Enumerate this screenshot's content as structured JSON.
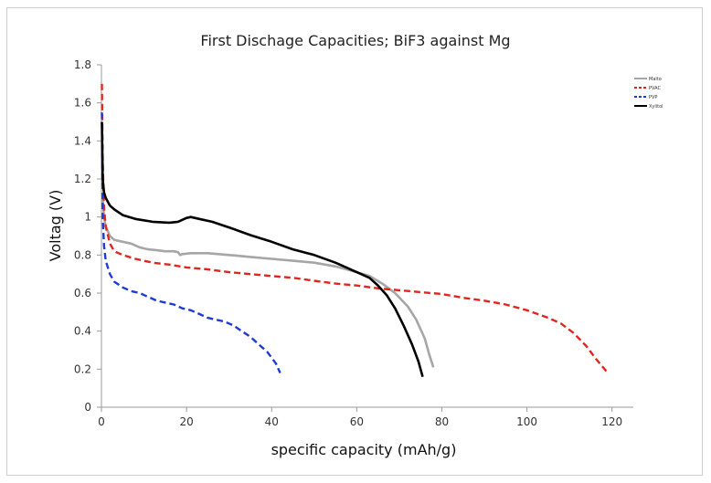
{
  "chart_data": {
    "type": "line",
    "title": "First Dischage Capacities; BiF3 against Mg",
    "xlabel": "specific capacity (mAh/g)",
    "ylabel": "Voltag (V)",
    "xlim": [
      0,
      125
    ],
    "ylim": [
      0,
      1.8
    ],
    "xticks": [
      "0",
      "20",
      "40",
      "60",
      "80",
      "100",
      "120"
    ],
    "yticks": [
      "0",
      "0.2",
      "0.4",
      "0.6",
      "0.8",
      "1",
      "1.2",
      "1.4",
      "1.6",
      "1.8"
    ],
    "grid": false,
    "legend_position": "top-right",
    "series": [
      {
        "name": "Malto",
        "color": "#a6a6a6",
        "dash": "solid",
        "points": [
          [
            0.3,
            1.1
          ],
          [
            0.6,
            1.0
          ],
          [
            1,
            0.95
          ],
          [
            2,
            0.9
          ],
          [
            3,
            0.88
          ],
          [
            5,
            0.87
          ],
          [
            7,
            0.86
          ],
          [
            9,
            0.84
          ],
          [
            11,
            0.83
          ],
          [
            13,
            0.825
          ],
          [
            15,
            0.82
          ],
          [
            17,
            0.82
          ],
          [
            18,
            0.815
          ],
          [
            18.5,
            0.8
          ],
          [
            19,
            0.805
          ],
          [
            21,
            0.81
          ],
          [
            25,
            0.81
          ],
          [
            30,
            0.8
          ],
          [
            35,
            0.79
          ],
          [
            40,
            0.78
          ],
          [
            45,
            0.77
          ],
          [
            50,
            0.76
          ],
          [
            55,
            0.74
          ],
          [
            60,
            0.71
          ],
          [
            63,
            0.69
          ],
          [
            66,
            0.65
          ],
          [
            69,
            0.6
          ],
          [
            72,
            0.53
          ],
          [
            74,
            0.46
          ],
          [
            76,
            0.36
          ],
          [
            77,
            0.28
          ],
          [
            78,
            0.21
          ]
        ]
      },
      {
        "name": "PVAC",
        "color": "#e0261f",
        "dash": "dashed",
        "points": [
          [
            0.1,
            1.7
          ],
          [
            0.3,
            1.3
          ],
          [
            0.6,
            1.05
          ],
          [
            1,
            0.95
          ],
          [
            2,
            0.86
          ],
          [
            3,
            0.82
          ],
          [
            5,
            0.8
          ],
          [
            8,
            0.78
          ],
          [
            12,
            0.76
          ],
          [
            16,
            0.75
          ],
          [
            20,
            0.735
          ],
          [
            25,
            0.725
          ],
          [
            30,
            0.71
          ],
          [
            35,
            0.7
          ],
          [
            40,
            0.69
          ],
          [
            45,
            0.68
          ],
          [
            50,
            0.665
          ],
          [
            55,
            0.65
          ],
          [
            60,
            0.64
          ],
          [
            65,
            0.625
          ],
          [
            70,
            0.615
          ],
          [
            75,
            0.605
          ],
          [
            80,
            0.595
          ],
          [
            85,
            0.575
          ],
          [
            90,
            0.56
          ],
          [
            95,
            0.54
          ],
          [
            100,
            0.51
          ],
          [
            105,
            0.47
          ],
          [
            108,
            0.44
          ],
          [
            111,
            0.39
          ],
          [
            114,
            0.32
          ],
          [
            116,
            0.26
          ],
          [
            117.5,
            0.22
          ],
          [
            119,
            0.18
          ]
        ]
      },
      {
        "name": "PVP",
        "color": "#1f3bd6",
        "dash": "dashed",
        "points": [
          [
            0.1,
            1.55
          ],
          [
            0.3,
            1.0
          ],
          [
            0.6,
            0.85
          ],
          [
            1,
            0.77
          ],
          [
            2,
            0.7
          ],
          [
            3,
            0.66
          ],
          [
            5,
            0.63
          ],
          [
            7,
            0.61
          ],
          [
            9,
            0.6
          ],
          [
            11,
            0.58
          ],
          [
            13,
            0.56
          ],
          [
            15,
            0.55
          ],
          [
            17,
            0.54
          ],
          [
            19,
            0.52
          ],
          [
            21,
            0.51
          ],
          [
            23,
            0.49
          ],
          [
            25,
            0.47
          ],
          [
            27,
            0.46
          ],
          [
            29,
            0.45
          ],
          [
            31,
            0.43
          ],
          [
            33,
            0.4
          ],
          [
            35,
            0.37
          ],
          [
            37,
            0.33
          ],
          [
            39,
            0.29
          ],
          [
            41,
            0.23
          ],
          [
            42,
            0.18
          ]
        ]
      },
      {
        "name": "Xylitol",
        "color": "#000000",
        "dash": "solid",
        "points": [
          [
            0.1,
            1.5
          ],
          [
            0.3,
            1.2
          ],
          [
            0.6,
            1.13
          ],
          [
            1,
            1.1
          ],
          [
            2,
            1.06
          ],
          [
            3,
            1.04
          ],
          [
            5,
            1.01
          ],
          [
            8,
            0.99
          ],
          [
            12,
            0.975
          ],
          [
            16,
            0.97
          ],
          [
            18,
            0.975
          ],
          [
            20,
            0.995
          ],
          [
            21,
            1.0
          ],
          [
            23,
            0.99
          ],
          [
            26,
            0.975
          ],
          [
            30,
            0.945
          ],
          [
            35,
            0.905
          ],
          [
            40,
            0.87
          ],
          [
            45,
            0.83
          ],
          [
            50,
            0.8
          ],
          [
            55,
            0.76
          ],
          [
            60,
            0.71
          ],
          [
            63,
            0.68
          ],
          [
            65,
            0.64
          ],
          [
            67,
            0.59
          ],
          [
            69,
            0.52
          ],
          [
            71,
            0.43
          ],
          [
            73,
            0.33
          ],
          [
            74.5,
            0.24
          ],
          [
            75.5,
            0.16
          ]
        ]
      }
    ]
  }
}
